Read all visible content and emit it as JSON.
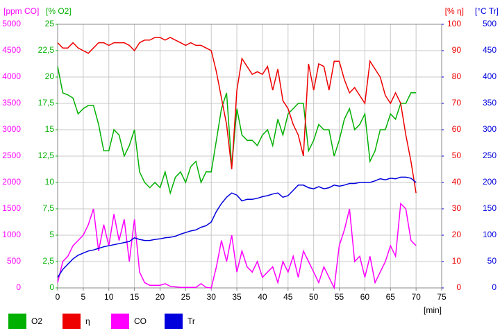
{
  "chart_data": {
    "type": "line",
    "x_label": "[min]",
    "x": [
      0,
      1,
      2,
      3,
      4,
      5,
      6,
      7,
      8,
      9,
      10,
      11,
      12,
      13,
      14,
      15,
      16,
      17,
      18,
      19,
      20,
      21,
      22,
      23,
      24,
      25,
      26,
      27,
      28,
      29,
      30,
      31,
      32,
      33,
      34,
      35,
      36,
      37,
      38,
      39,
      40,
      41,
      42,
      43,
      44,
      45,
      46,
      47,
      48,
      49,
      50,
      51,
      52,
      53,
      54,
      55,
      56,
      57,
      58,
      59,
      60,
      61,
      62,
      63,
      64,
      65,
      66,
      67,
      68,
      69,
      70
    ],
    "xlim": [
      0,
      75
    ],
    "xticks": [
      0,
      5,
      10,
      15,
      20,
      25,
      30,
      35,
      40,
      45,
      50,
      55,
      60,
      65,
      70,
      75
    ],
    "grid": true,
    "yaxes": [
      {
        "label": "[ppm CO]",
        "color": "#ff00ff",
        "ylim": [
          0,
          5000
        ],
        "yticks": [
          0,
          500,
          1000,
          1500,
          2000,
          2500,
          3000,
          3500,
          4000,
          4500,
          5000
        ]
      },
      {
        "label": "[% O2]",
        "color": "#00b000",
        "ylim": [
          0,
          25
        ],
        "yticks": [
          0,
          {
            "value": 2.5,
            "label": "2,5"
          },
          5,
          {
            "value": 7.5,
            "label": "7,5"
          },
          10,
          {
            "value": 12.5,
            "label": "12,5"
          },
          15,
          {
            "value": 17.5,
            "label": "17,5"
          },
          20,
          {
            "value": 22.5,
            "label": "22,5"
          },
          25
        ]
      },
      {
        "label": "[% η]",
        "color": "#ee0000",
        "ylim": [
          0,
          100
        ],
        "yticks": [
          0,
          10,
          20,
          30,
          40,
          50,
          60,
          70,
          80,
          90,
          100
        ]
      },
      {
        "label": "[°C Tr]",
        "color": "#0000dd",
        "ylim": [
          0,
          500
        ],
        "yticks": [
          0,
          50,
          100,
          150,
          200,
          250,
          300,
          350,
          400,
          450,
          500
        ]
      }
    ],
    "series": [
      {
        "name": "O2",
        "color": "#00b000",
        "axis": 1,
        "values": [
          21,
          18.5,
          18.3,
          18,
          16.5,
          17,
          17.3,
          17.3,
          15.5,
          13,
          13,
          15,
          14.5,
          12.5,
          13.5,
          15,
          11,
          10,
          9.5,
          10,
          9.5,
          11,
          9,
          10.5,
          11,
          10,
          11.5,
          12,
          10,
          11,
          11,
          14,
          17,
          18.5,
          11.5,
          17,
          14.5,
          14,
          14,
          13.5,
          14.5,
          15,
          13.5,
          16,
          14.5,
          16.5,
          17,
          17.5,
          17.5,
          13,
          14,
          15.5,
          15,
          15,
          12.5,
          14,
          16,
          17,
          15,
          15.5,
          16.5,
          12,
          13,
          15,
          15,
          16.5,
          16,
          17.5,
          17.5,
          18.5,
          18.5
        ]
      },
      {
        "name": "η",
        "color": "#ee0000",
        "axis": 2,
        "values": [
          93,
          91,
          91,
          93,
          91,
          90,
          89,
          91,
          93,
          93,
          92,
          93,
          93,
          93,
          92,
          90,
          93,
          94,
          94,
          95,
          95,
          94,
          95,
          94,
          93,
          92,
          93,
          92,
          92,
          91,
          90,
          82,
          72,
          62,
          45,
          75,
          87,
          84,
          81,
          82,
          81,
          84,
          75,
          83,
          71,
          68,
          62,
          58,
          50,
          85,
          75,
          85,
          84,
          75,
          86,
          86,
          79,
          74,
          76,
          73,
          70,
          86,
          83,
          80,
          73,
          70,
          74,
          70,
          58,
          48,
          36
        ]
      },
      {
        "name": "CO",
        "color": "#ff00ff",
        "axis": 0,
        "values": [
          100,
          500,
          600,
          800,
          900,
          1000,
          1200,
          1500,
          700,
          1200,
          800,
          1400,
          900,
          1300,
          500,
          1300,
          300,
          100,
          50,
          50,
          50,
          80,
          30,
          20,
          10,
          10,
          10,
          10,
          80,
          10,
          0,
          400,
          900,
          500,
          1000,
          300,
          700,
          400,
          300,
          500,
          200,
          300,
          400,
          100,
          500,
          300,
          600,
          200,
          700,
          500,
          300,
          100,
          400,
          200,
          0,
          800,
          1100,
          1500,
          500,
          600,
          200,
          600,
          100,
          300,
          500,
          800,
          600,
          1600,
          1500,
          900,
          800
        ]
      },
      {
        "name": "Tr",
        "color": "#0000dd",
        "axis": 3,
        "values": [
          20,
          35,
          45,
          55,
          62,
          66,
          70,
          72,
          75,
          78,
          80,
          82,
          84,
          86,
          88,
          95,
          92,
          90,
          90,
          92,
          93,
          95,
          96,
          98,
          102,
          105,
          108,
          110,
          115,
          118,
          125,
          145,
          160,
          172,
          180,
          176,
          165,
          168,
          168,
          170,
          173,
          175,
          178,
          180,
          172,
          175,
          185,
          195,
          195,
          190,
          188,
          192,
          188,
          190,
          195,
          193,
          195,
          198,
          198,
          200,
          200,
          200,
          203,
          207,
          205,
          208,
          207,
          210,
          210,
          208,
          200
        ]
      }
    ]
  }
}
